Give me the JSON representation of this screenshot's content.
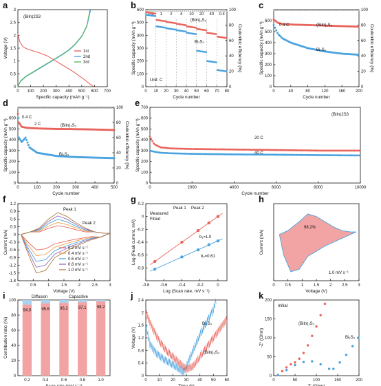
{
  "colors": {
    "red": "#e8645c",
    "blue": "#4aa3df",
    "pink": "#f2a3a3",
    "light_blue": "#a9d2f0",
    "grey": "#bbbbbb",
    "green": "#5cb85c",
    "dark": "#222222"
  },
  "chart_data": [
    {
      "panel": "a",
      "type": "line",
      "annotation": "(BiIn)2S3",
      "xlabel": "Specific capacity (mAh g⁻¹)",
      "ylabel": "Voltage (V)",
      "xlim": [
        0,
        700
      ],
      "ylim": [
        0,
        3.0
      ],
      "x_ticks": [
        0,
        100,
        200,
        300,
        400,
        500,
        600,
        700
      ],
      "y_ticks": [
        0.0,
        0.5,
        1.0,
        1.5,
        2.0,
        2.5,
        3.0
      ],
      "legend_position": "center-right",
      "series": [
        {
          "name": "1st",
          "color": "#e8645c",
          "x": [
            0,
            15,
            40,
            80,
            130,
            180,
            230,
            280,
            330,
            380,
            430,
            480,
            520,
            560,
            590
          ],
          "y": [
            2.05,
            1.75,
            1.55,
            1.45,
            1.38,
            1.3,
            1.2,
            1.05,
            0.9,
            0.75,
            0.6,
            0.42,
            0.28,
            0.12,
            0.01
          ]
        },
        {
          "name": "2nd",
          "color": "#4aa3df",
          "x": [
            0,
            20,
            60,
            100,
            150,
            200,
            250,
            300,
            350,
            400,
            450,
            500,
            540,
            570
          ],
          "y": [
            0.01,
            0.2,
            0.38,
            0.5,
            0.65,
            0.8,
            0.95,
            1.1,
            1.25,
            1.42,
            1.65,
            1.95,
            2.35,
            3.0
          ]
        },
        {
          "name": "3rd",
          "color": "#5cb85c",
          "x": [
            0,
            20,
            60,
            100,
            150,
            200,
            250,
            300,
            350,
            400,
            450,
            500,
            540,
            565
          ],
          "y": [
            0.01,
            0.22,
            0.4,
            0.52,
            0.67,
            0.82,
            0.97,
            1.12,
            1.27,
            1.44,
            1.67,
            1.97,
            2.38,
            3.0
          ]
        }
      ]
    },
    {
      "panel": "b",
      "type": "scatter",
      "unit_label": "Unit: C",
      "rates": [
        "0.4",
        "1",
        "2",
        "4",
        "10",
        "20",
        "40",
        "0.4"
      ],
      "xlabel": "Cycle number",
      "ylabel": "Specific capacity (mAh g⁻¹)",
      "y2label": "Coulombic efficiency (%)",
      "xlim": [
        0,
        80
      ],
      "ylim": [
        0,
        600
      ],
      "y2lim": [
        0,
        100
      ],
      "x_ticks": [
        0,
        10,
        20,
        30,
        40,
        50,
        60,
        70,
        80
      ],
      "y_ticks": [
        0,
        100,
        200,
        300,
        400,
        500,
        600
      ],
      "y2_ticks": [
        0,
        20,
        40,
        60,
        80,
        100
      ],
      "series": [
        {
          "name": "(BiIn)2S3",
          "color": "#e8645c",
          "values": [
            [
              0,
              580
            ],
            [
              10,
              520
            ],
            [
              20,
              505
            ],
            [
              30,
              490
            ],
            [
              40,
              470
            ],
            [
              50,
              450
            ],
            [
              60,
              420
            ],
            [
              70,
              390
            ],
            [
              80,
              570
            ]
          ]
        },
        {
          "name": "Bi2S3",
          "color": "#4aa3df",
          "values": [
            [
              0,
              560
            ],
            [
              10,
              470
            ],
            [
              20,
              455
            ],
            [
              30,
              440
            ],
            [
              40,
              420
            ],
            [
              50,
              280
            ],
            [
              60,
              200
            ],
            [
              70,
              130
            ],
            [
              80,
              520
            ]
          ]
        }
      ]
    },
    {
      "panel": "c",
      "type": "scatter",
      "rate": "0.4 C",
      "xlabel": "Cycle number",
      "ylabel": "Specific capacity (mAh g⁻¹)",
      "y2label": "Coulombic efficiency (%)",
      "xlim": [
        0,
        200
      ],
      "ylim": [
        0,
        700
      ],
      "y2lim": [
        0,
        100
      ],
      "x_ticks": [
        0,
        40,
        80,
        120,
        160,
        200
      ],
      "y_ticks": [
        0,
        100,
        200,
        300,
        400,
        500,
        600
      ],
      "y2_ticks": [
        0,
        20,
        40,
        60,
        80,
        100
      ],
      "series": [
        {
          "name": "(BiIn)2S3",
          "color": "#e8645c",
          "x": [
            0,
            10,
            20,
            40,
            80,
            120,
            160,
            200
          ],
          "y": [
            610,
            580,
            570,
            565,
            560,
            555,
            550,
            545
          ]
        },
        {
          "name": "Bi2S3",
          "color": "#4aa3df",
          "x": [
            0,
            10,
            20,
            40,
            80,
            120,
            160,
            200
          ],
          "y": [
            560,
            480,
            440,
            400,
            350,
            320,
            300,
            290
          ]
        }
      ]
    },
    {
      "panel": "d",
      "type": "scatter",
      "rates": [
        "0.4 C",
        "2 C"
      ],
      "xlabel": "Cycle number",
      "ylabel": "Specific capacity (mAh g⁻¹)",
      "y2label": "Coulombic efficiency (%)",
      "xlim": [
        0,
        500
      ],
      "ylim": [
        0,
        700
      ],
      "y2lim": [
        0,
        100
      ],
      "x_ticks": [
        0,
        100,
        200,
        300,
        400,
        500
      ],
      "y_ticks": [
        0,
        100,
        200,
        300,
        400,
        500,
        600
      ],
      "y2_ticks": [
        0,
        20,
        40,
        60,
        80,
        100
      ],
      "series": [
        {
          "name": "(BiIn)2S3",
          "color": "#e8645c",
          "x": [
            0,
            5,
            20,
            50,
            100,
            200,
            300,
            400,
            500
          ],
          "y": [
            640,
            560,
            520,
            510,
            505,
            500,
            498,
            495,
            490
          ]
        },
        {
          "name": "Bi2S3",
          "color": "#4aa3df",
          "x": [
            0,
            5,
            20,
            40,
            60,
            100,
            200,
            300,
            400,
            500
          ],
          "y": [
            600,
            420,
            380,
            420,
            330,
            280,
            250,
            240,
            235,
            230
          ]
        }
      ]
    },
    {
      "panel": "e",
      "type": "scatter",
      "annotation": "(BiIn)2S3",
      "rates": [
        "20 C",
        "40 C"
      ],
      "xlabel": "Cycle number",
      "ylabel": "Specific capacity (mAh g⁻¹)",
      "xlim": [
        0,
        10000
      ],
      "ylim": [
        0,
        700
      ],
      "x_ticks": [
        0,
        2000,
        4000,
        6000,
        8000,
        10000
      ],
      "y_ticks": [
        0,
        100,
        200,
        300,
        400,
        500,
        600,
        700
      ],
      "series": [
        {
          "name": "20 C",
          "color": "#e8645c",
          "x": [
            0,
            200,
            500,
            1000,
            2000,
            4000,
            6000,
            8000,
            10000
          ],
          "y": [
            430,
            360,
            330,
            320,
            315,
            310,
            305,
            300,
            300
          ]
        },
        {
          "name": "40 C",
          "color": "#4aa3df",
          "x": [
            0,
            200,
            500,
            1000,
            2000,
            4000,
            6000,
            8000,
            10000
          ],
          "y": [
            300,
            290,
            280,
            275,
            270,
            265,
            262,
            258,
            255
          ]
        }
      ]
    },
    {
      "panel": "f",
      "type": "line",
      "peaks": [
        "Peak 1",
        "Peak 2"
      ],
      "xlabel": "Voltage (V)",
      "ylabel": "Current (mA)",
      "xlim": [
        0.0,
        3.0
      ],
      "ylim": [
        -1.8,
        1.2
      ],
      "x_ticks": [
        0.0,
        0.5,
        1.0,
        1.5,
        2.0,
        2.5,
        3.0
      ],
      "y_ticks": [
        -1.8,
        -1.5,
        -1.2,
        -0.9,
        -0.6,
        -0.3,
        0.0,
        0.3,
        0.6,
        0.9,
        1.2
      ],
      "series": [
        {
          "name": "0.2 mV s⁻¹",
          "color": "#e8645c",
          "scale": 0.4
        },
        {
          "name": "0.4 mV s⁻¹",
          "color": "#f0a04b",
          "scale": 0.55
        },
        {
          "name": "0.6 mV s⁻¹",
          "color": "#4aa3df",
          "scale": 0.7
        },
        {
          "name": "0.8 mV s⁻¹",
          "color": "#8e6bbf",
          "scale": 0.85
        },
        {
          "name": "1.0 mV s⁻¹",
          "color": "#b08040",
          "scale": 1.0
        }
      ]
    },
    {
      "panel": "g",
      "type": "scatter",
      "legend": [
        "Peak 1",
        "Peak 2",
        "Measured",
        "Fitted"
      ],
      "xlabel": "Log (Scan rate, mV s⁻¹)",
      "ylabel": "Log (Peak current, mA)",
      "xlim": [
        -0.8,
        0.1
      ],
      "ylim": [
        -1.0,
        0.2
      ],
      "x_ticks": [
        -0.8,
        -0.6,
        -0.4,
        -0.2,
        0.0
      ],
      "y_ticks": [
        -0.8,
        -0.6,
        -0.4,
        -0.2,
        0.0,
        0.2
      ],
      "series": [
        {
          "name": "Peak 1",
          "color": "#e8645c",
          "fit_label": "b₁=1.0",
          "x": [
            -0.7,
            -0.4,
            -0.22,
            -0.1,
            0.0
          ],
          "y": [
            -0.7,
            -0.4,
            -0.22,
            -0.1,
            0.0
          ]
        },
        {
          "name": "Peak 2",
          "color": "#4aa3df",
          "fit_label": "b₂=0.61",
          "x": [
            -0.7,
            -0.4,
            -0.22,
            -0.1,
            0.0
          ],
          "y": [
            -0.82,
            -0.63,
            -0.52,
            -0.44,
            -0.38
          ]
        }
      ]
    },
    {
      "panel": "h",
      "type": "area",
      "annotation": "98.2%",
      "scan_rate": "1.0 mV s⁻¹",
      "xlabel": "Voltage (V)",
      "ylabel": "Current (mA)",
      "xlim": [
        0.0,
        3.0
      ],
      "x_ticks": [
        0.0,
        0.5,
        1.0,
        1.5,
        2.0,
        2.5,
        3.0
      ]
    },
    {
      "panel": "i",
      "type": "bar",
      "categories": [
        "0.2",
        "0.4",
        "0.6",
        "0.8",
        "1.0"
      ],
      "legend": [
        "Diffusion",
        "Capacitive"
      ],
      "series": [
        {
          "name": "Capacitive",
          "color": "#f2a3a3",
          "values": [
            94.0,
            95.6,
            96.2,
            97.1,
            98.2
          ]
        },
        {
          "name": "Diffusion",
          "color": "#a9d2f0",
          "values": [
            6.0,
            4.4,
            3.8,
            2.9,
            1.8
          ]
        }
      ],
      "xlabel": "Scan rate (mV s⁻¹)",
      "ylabel": "Contribution ratio (%)",
      "ylim": [
        0,
        100
      ],
      "y_ticks": [
        0,
        20,
        40,
        60,
        80,
        100
      ]
    },
    {
      "panel": "j",
      "type": "line",
      "xlabel": "Time (h)",
      "ylabel": "Voltage (V)",
      "xlim": [
        0,
        60
      ],
      "ylim": [
        0.0,
        2.4
      ],
      "x_ticks": [
        0,
        10,
        20,
        30,
        40,
        50,
        60
      ],
      "y_ticks": [
        0.0,
        0.4,
        0.8,
        1.2,
        1.6,
        2.0,
        2.4
      ],
      "series": [
        {
          "name": "Bi2S3",
          "color": "#4aa3df",
          "x": [
            0,
            3,
            8,
            14,
            20,
            25,
            28,
            32,
            36,
            40,
            45,
            50,
            52
          ],
          "y": [
            1.6,
            1.0,
            0.7,
            0.5,
            0.35,
            0.2,
            0.1,
            0.5,
            0.9,
            1.3,
            1.7,
            2.1,
            2.4
          ]
        },
        {
          "name": "(BiIn)2S3",
          "color": "#e8645c",
          "x": [
            0,
            5,
            10,
            15,
            20,
            25,
            30,
            35,
            40,
            45,
            50,
            55,
            60
          ],
          "y": [
            2.0,
            1.5,
            1.1,
            0.8,
            0.6,
            0.4,
            0.2,
            0.3,
            0.6,
            0.9,
            1.2,
            1.5,
            1.8
          ]
        }
      ]
    },
    {
      "panel": "k",
      "type": "scatter",
      "annotation": "Initial",
      "xlabel": "Z' (Ohm)",
      "ylabel": "-Z'' (Ohm)",
      "xlim": [
        0,
        200
      ],
      "ylim": [
        0,
        200
      ],
      "x_ticks": [
        0,
        50,
        100,
        150,
        200
      ],
      "y_ticks": [
        0,
        50,
        100,
        150,
        200
      ],
      "series": [
        {
          "name": "(BiIn)2S3",
          "color": "#e8645c",
          "x": [
            10,
            20,
            30,
            40,
            50,
            60,
            70,
            80,
            90,
            100,
            110,
            120
          ],
          "y": [
            2,
            12,
            22,
            30,
            35,
            45,
            60,
            80,
            105,
            130,
            160,
            190
          ]
        },
        {
          "name": "Bi2S3",
          "color": "#4aa3df",
          "x": [
            10,
            30,
            50,
            70,
            90,
            110,
            130,
            140,
            155,
            170,
            185,
            198
          ],
          "y": [
            2,
            15,
            28,
            36,
            38,
            30,
            18,
            18,
            35,
            55,
            78,
            100
          ]
        }
      ]
    }
  ]
}
